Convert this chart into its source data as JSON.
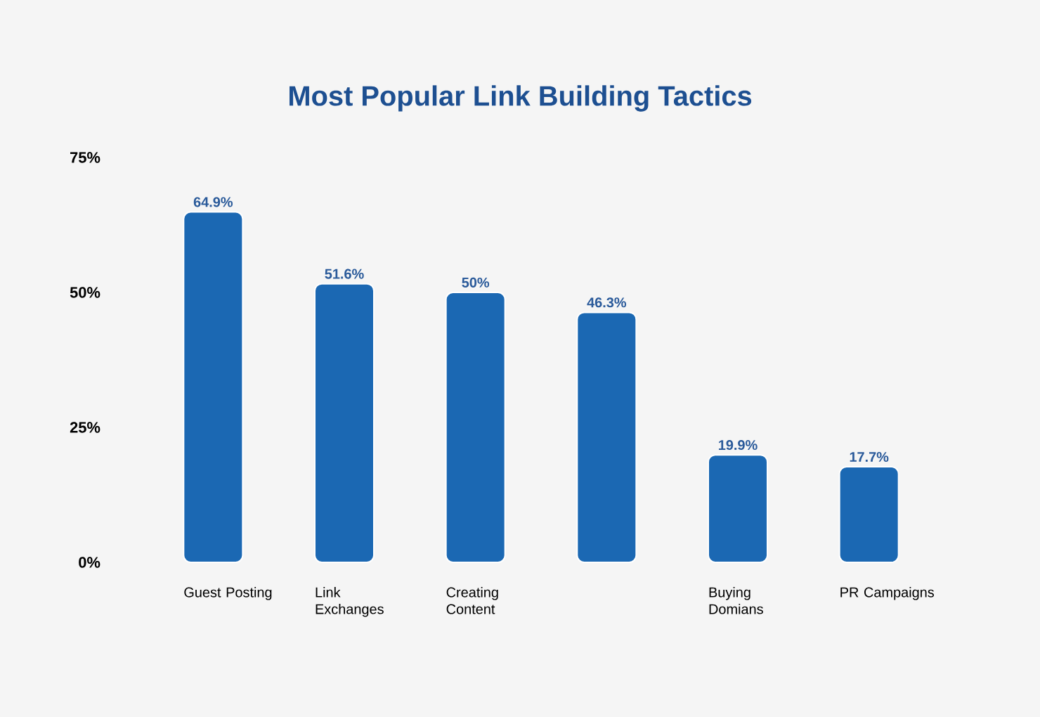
{
  "chart_data": {
    "type": "bar",
    "title": "Most Popular Link Building Tactics",
    "categories": [
      "Guest Posting",
      "Link Exchanges",
      "Creating Content",
      null,
      "Buying Domians",
      "PR Campaigns"
    ],
    "values": [
      64.9,
      51.6,
      50,
      46.3,
      19.9,
      17.7
    ],
    "value_labels": [
      "64.9%",
      "51.6%",
      "50%",
      "46.3%",
      "19.9%",
      "17.7%"
    ],
    "color": "#1b68b3",
    "ylim": [
      0,
      75
    ],
    "yticks": [
      {
        "value": 0,
        "label": "0%"
      },
      {
        "value": 25,
        "label": "25%"
      },
      {
        "value": 50,
        "label": "50%"
      },
      {
        "value": 75,
        "label": "75%"
      }
    ]
  }
}
